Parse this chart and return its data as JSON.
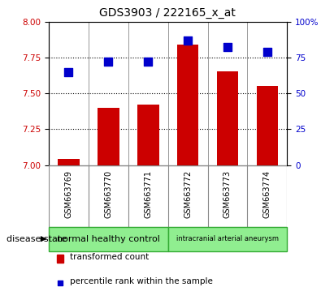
{
  "title": "GDS3903 / 222165_x_at",
  "samples": [
    "GSM663769",
    "GSM663770",
    "GSM663771",
    "GSM663772",
    "GSM663773",
    "GSM663774"
  ],
  "transformed_count": [
    7.04,
    7.4,
    7.42,
    7.84,
    7.65,
    7.55
  ],
  "percentile_rank": [
    65,
    72,
    72,
    87,
    82,
    79
  ],
  "group1_label": "normal healthy control",
  "group1_count": 3,
  "group2_label": "intracranial arterial aneurysm",
  "group2_count": 3,
  "group_color": "#90EE90",
  "group_edge_color": "#33AA33",
  "ylim_left": [
    7.0,
    8.0
  ],
  "ylim_right": [
    0,
    100
  ],
  "yticks_left": [
    7.0,
    7.25,
    7.5,
    7.75,
    8.0
  ],
  "yticks_right": [
    0,
    25,
    50,
    75,
    100
  ],
  "bar_color": "#CC0000",
  "dot_color": "#0000CC",
  "bar_width": 0.55,
  "dot_size": 45,
  "left_tick_color": "#CC0000",
  "right_tick_color": "#0000CC",
  "disease_state_label": "disease state",
  "legend_bar_label": "transformed count",
  "legend_dot_label": "percentile rank within the sample",
  "sample_box_color": "#C0C0C0",
  "sample_box_edge": "#888888",
  "plot_bg": "#ffffff"
}
